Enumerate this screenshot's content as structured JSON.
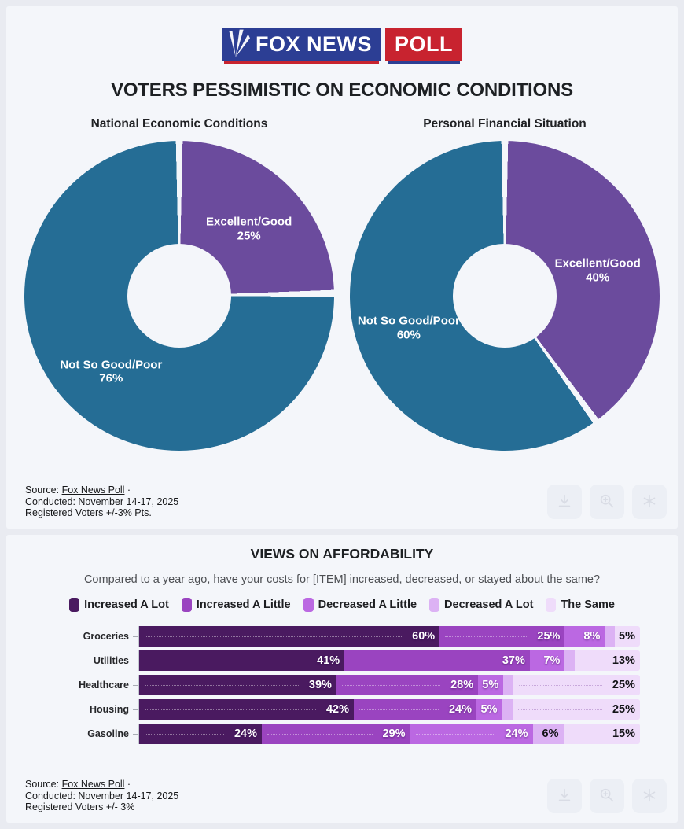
{
  "logo": {
    "fox_text": "FOX NEWS",
    "poll_text": "POLL",
    "blue": "#2c3e94",
    "red": "#c8232f"
  },
  "top_card": {
    "title": "VOTERS PESSIMISTIC ON ECONOMIC CONDITIONS",
    "source": {
      "label": "Source: ",
      "link_text": "Fox News Poll",
      "bullet": " ·",
      "conducted": "Conducted: November 14-17, 2025",
      "moe": "Registered Voters +/-3% Pts."
    }
  },
  "bottom_card": {
    "question": "Compared to a year ago, have your costs for [ITEM] increased, decreased, or stayed about the same?",
    "source": {
      "label": "Source: ",
      "link_text": "Fox News Poll",
      "bullet": " ·",
      "conducted": "Conducted: November 14-17, 2025",
      "moe": "Registered Voters +/- 3%"
    }
  },
  "action_icons": [
    "download",
    "zoom-in",
    "share"
  ],
  "chart_data": [
    {
      "type": "pie",
      "donut": true,
      "title": "National Economic Conditions",
      "labels": [
        "Excellent/Good",
        "Not So Good/Poor"
      ],
      "values": [
        25,
        76
      ],
      "display": [
        "25%",
        "76%"
      ],
      "colors": [
        "#6b4b9d",
        "#256d95"
      ],
      "label_color": "#ffffff"
    },
    {
      "type": "pie",
      "donut": true,
      "title": "Personal Financial Situation",
      "labels": [
        "Excellent/Good",
        "Not So Good/Poor"
      ],
      "values": [
        40,
        60
      ],
      "display": [
        "40%",
        "60%"
      ],
      "colors": [
        "#6b4b9d",
        "#256d95"
      ],
      "label_color": "#ffffff"
    },
    {
      "type": "bar",
      "stacked": true,
      "orientation": "horizontal",
      "title": "VIEWS ON AFFORDABILITY",
      "legend_position": "top",
      "xlim": [
        0,
        100
      ],
      "categories": [
        "Groceries",
        "Utilities",
        "Healthcare",
        "Housing",
        "Gasoline"
      ],
      "colors": [
        "#4a1a60",
        "#9a44c0",
        "#bb68e2",
        "#dcb2f4",
        "#efdcfa"
      ],
      "series": [
        {
          "name": "Increased A Lot",
          "values": [
            60,
            41,
            39,
            42,
            24
          ]
        },
        {
          "name": "Increased A Little",
          "values": [
            25,
            37,
            28,
            24,
            29
          ]
        },
        {
          "name": "Decreased A Little",
          "values": [
            8,
            7,
            5,
            5,
            24
          ]
        },
        {
          "name": "Decreased A Lot",
          "values": [
            2,
            2,
            2,
            2,
            6
          ]
        },
        {
          "name": "The Same",
          "values": [
            5,
            13,
            25,
            25,
            15
          ]
        }
      ],
      "rows": [
        {
          "category": "Groceries",
          "segments": [
            {
              "value": 60,
              "label": "60%"
            },
            {
              "value": 25,
              "label": "25%"
            },
            {
              "value": 8,
              "label": "8%"
            },
            {
              "value": 2,
              "label": ""
            },
            {
              "value": 5,
              "label": "5%"
            }
          ]
        },
        {
          "category": "Utilities",
          "segments": [
            {
              "value": 41,
              "label": "41%"
            },
            {
              "value": 37,
              "label": "37%"
            },
            {
              "value": 7,
              "label": "7%"
            },
            {
              "value": 2,
              "label": ""
            },
            {
              "value": 13,
              "label": "13%"
            }
          ]
        },
        {
          "category": "Healthcare",
          "segments": [
            {
              "value": 39,
              "label": "39%"
            },
            {
              "value": 28,
              "label": "28%"
            },
            {
              "value": 5,
              "label": "5%"
            },
            {
              "value": 2,
              "label": ""
            },
            {
              "value": 25,
              "label": "25%"
            }
          ]
        },
        {
          "category": "Housing",
          "segments": [
            {
              "value": 42,
              "label": "42%"
            },
            {
              "value": 24,
              "label": "24%"
            },
            {
              "value": 5,
              "label": "5%"
            },
            {
              "value": 2,
              "label": ""
            },
            {
              "value": 25,
              "label": "25%"
            }
          ]
        },
        {
          "category": "Gasoline",
          "segments": [
            {
              "value": 24,
              "label": "24%"
            },
            {
              "value": 29,
              "label": "29%"
            },
            {
              "value": 24,
              "label": "24%"
            },
            {
              "value": 6,
              "label": "6%"
            },
            {
              "value": 15,
              "label": "15%"
            }
          ]
        }
      ]
    }
  ]
}
